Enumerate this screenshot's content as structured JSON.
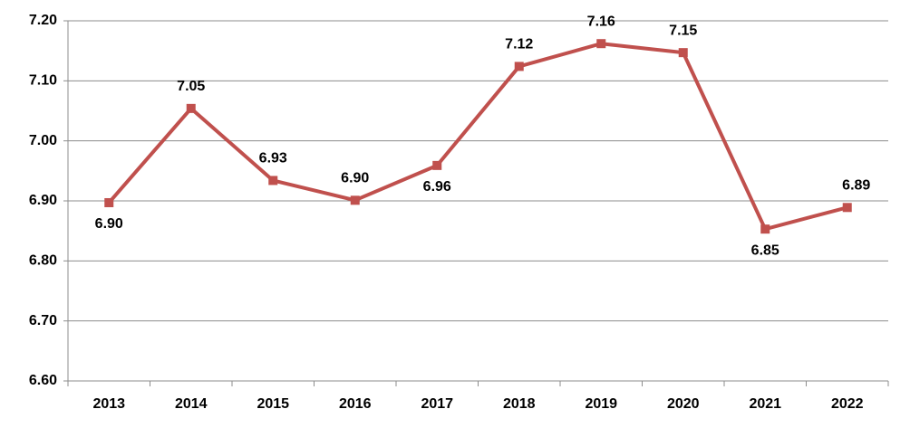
{
  "chart_data": {
    "type": "line",
    "categories": [
      "2013",
      "2014",
      "2015",
      "2016",
      "2017",
      "2018",
      "2019",
      "2020",
      "2021",
      "2022"
    ],
    "series": [
      {
        "color": "#c0504d",
        "values": [
          6.897,
          7.054,
          6.934,
          6.901,
          6.959,
          7.124,
          7.162,
          7.147,
          6.853,
          6.889
        ],
        "value_labels": [
          "6.90",
          "7.05",
          "6.93",
          "6.90",
          "6.96",
          "7.12",
          "7.16",
          "7.15",
          "6.85",
          "6.89"
        ]
      }
    ],
    "ylim": [
      6.6,
      7.2
    ],
    "yticks": [
      {
        "value": 6.6,
        "label": "6.60"
      },
      {
        "value": 6.7,
        "label": "6.70"
      },
      {
        "value": 6.8,
        "label": "6.80"
      },
      {
        "value": 6.9,
        "label": "6.90"
      },
      {
        "value": 7.0,
        "label": "7.00"
      },
      {
        "value": 7.1,
        "label": "7.10"
      },
      {
        "value": 7.2,
        "label": "7.20"
      }
    ],
    "grid": true
  }
}
